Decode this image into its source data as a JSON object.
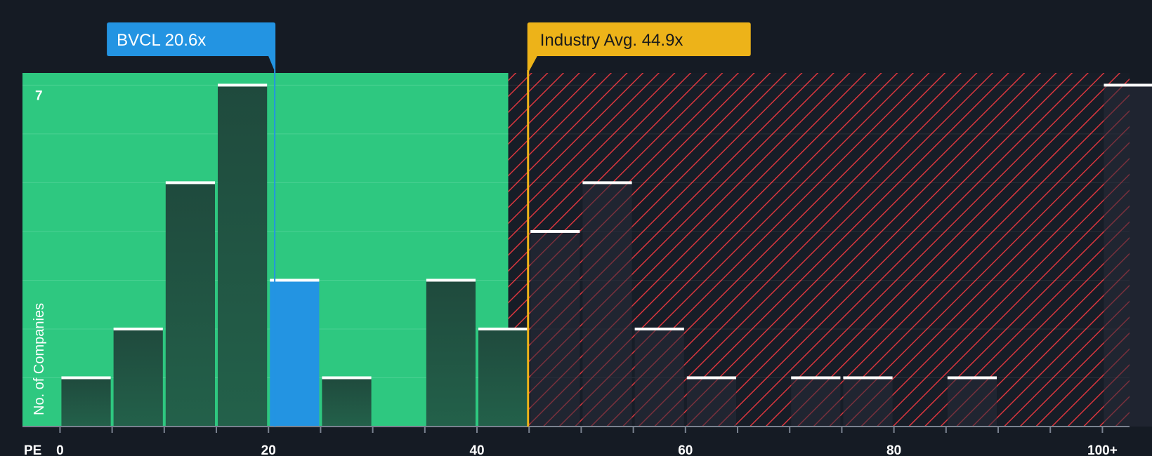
{
  "chart_data": {
    "type": "bar",
    "title": "",
    "xlabel": "PE",
    "ylabel": "No. of Companies",
    "xlim": [
      -3.6,
      102.6
    ],
    "ylim": [
      0,
      7.25
    ],
    "bin_width": 5,
    "bin_starts": [
      0,
      5,
      10,
      15,
      20,
      25,
      30,
      35,
      40,
      45,
      50,
      55,
      60,
      65,
      70,
      75,
      80,
      85,
      90,
      95,
      100
    ],
    "values": [
      1,
      2,
      5,
      7,
      3,
      1,
      0,
      3,
      2,
      4,
      5,
      2,
      1,
      0,
      1,
      1,
      0,
      1,
      0,
      0,
      7
    ],
    "highlight_bin_start": 20,
    "x_ticks": [
      {
        "value": 0,
        "label": "0"
      },
      {
        "value": 20,
        "label": "20"
      },
      {
        "value": 40,
        "label": "40"
      },
      {
        "value": 60,
        "label": "60"
      },
      {
        "value": 80,
        "label": "80"
      },
      {
        "value": 100,
        "label": "100+"
      }
    ],
    "y_ticks": [
      {
        "value": 7,
        "label": "7"
      }
    ],
    "company": {
      "label": "BVCL 20.6x",
      "value": 20.6
    },
    "industry_avg": {
      "label": "Industry Avg. 44.9x",
      "value": 44.9
    },
    "good_zone_end": 43.0,
    "colors": {
      "background": "#151b24",
      "good_zone": "#2ec880",
      "bad_zone": "#171d27",
      "hatch": "#d9363e",
      "bar": "#214a3e",
      "bar_top": "#ffffff",
      "highlight": "#2394e2",
      "industry": "#edb319",
      "gridline": "#5fd79f"
    }
  }
}
